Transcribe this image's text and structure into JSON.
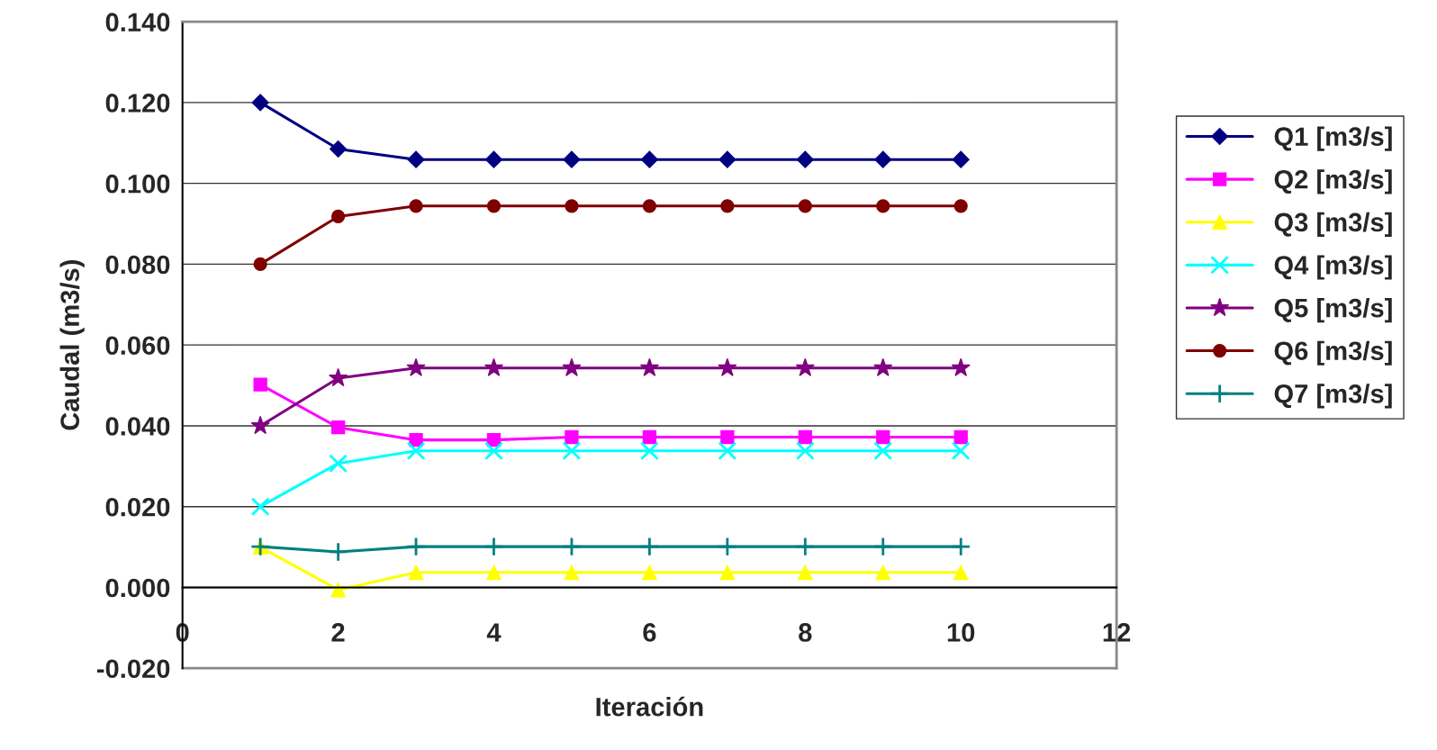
{
  "chart_data": {
    "type": "line",
    "xlabel": "Iteración",
    "ylabel": "Caudal (m3/s)",
    "xlim": [
      0,
      12
    ],
    "xticks": [
      0,
      2,
      4,
      6,
      8,
      10,
      12
    ],
    "ylim": [
      -0.02,
      0.14
    ],
    "yticks": [
      {
        "value": -0.02,
        "label": "-0.020"
      },
      {
        "value": 0,
        "label": "0.000"
      },
      {
        "value": 0.02,
        "label": "0.020"
      },
      {
        "value": 0.04,
        "label": "0.040"
      },
      {
        "value": 0.06,
        "label": "0.060"
      },
      {
        "value": 0.08,
        "label": "0.080"
      },
      {
        "value": 0.1,
        "label": "0.100"
      },
      {
        "value": 0.12,
        "label": "0.120"
      },
      {
        "value": 0.14,
        "label": "0.140"
      }
    ],
    "grid": "y",
    "legend": "right",
    "x": [
      1,
      2,
      3,
      4,
      5,
      6,
      7,
      8,
      9,
      10
    ],
    "series": [
      {
        "name": "Q1 [m3/s]",
        "color": "#000080",
        "marker": "diamond",
        "values": [
          0.12,
          0.1085,
          0.1059,
          0.1059,
          0.1059,
          0.1059,
          0.1059,
          0.1059,
          0.1059,
          0.1059
        ]
      },
      {
        "name": "Q2 [m3/s]",
        "color": "#ff00ff",
        "marker": "square",
        "values": [
          0.0502,
          0.0396,
          0.0365,
          0.0365,
          0.0372,
          0.0372,
          0.0372,
          0.0372,
          0.0372,
          0.0372
        ]
      },
      {
        "name": "Q3 [m3/s]",
        "color": "#ffff00",
        "marker": "triangle",
        "values": [
          0.01,
          -0.0006,
          0.0037,
          0.0037,
          0.0037,
          0.0037,
          0.0037,
          0.0037,
          0.0037,
          0.0037
        ]
      },
      {
        "name": "Q4 [m3/s]",
        "color": "#00ffff",
        "marker": "cross",
        "values": [
          0.02,
          0.0307,
          0.0338,
          0.0338,
          0.0338,
          0.0338,
          0.0338,
          0.0338,
          0.0338,
          0.0338
        ]
      },
      {
        "name": "Q5 [m3/s]",
        "color": "#800080",
        "marker": "star",
        "values": [
          0.04,
          0.0518,
          0.0543,
          0.0543,
          0.0543,
          0.0543,
          0.0543,
          0.0543,
          0.0543,
          0.0543
        ]
      },
      {
        "name": "Q6 [m3/s]",
        "color": "#800000",
        "marker": "circle",
        "values": [
          0.08,
          0.0918,
          0.0944,
          0.0944,
          0.0944,
          0.0944,
          0.0944,
          0.0944,
          0.0944,
          0.0944
        ]
      },
      {
        "name": "Q7 [m3/s]",
        "color": "#008080",
        "marker": "plus",
        "values": [
          0.0101,
          0.0088,
          0.0101,
          0.0101,
          0.0101,
          0.0101,
          0.0101,
          0.0101,
          0.0101,
          0.0101
        ]
      }
    ]
  }
}
